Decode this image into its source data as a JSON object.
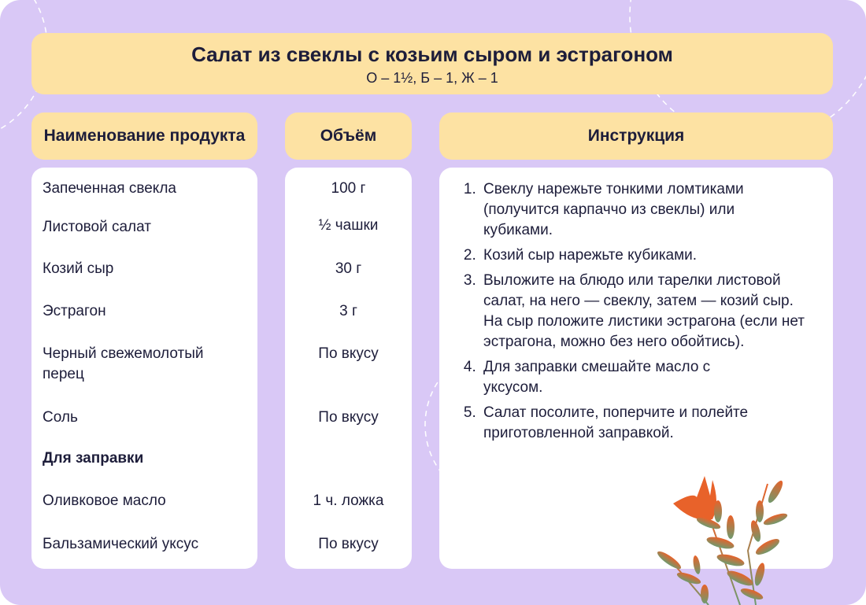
{
  "title": "Салат из свеклы с козьим сыром и эстрагоном",
  "subtitle": "О – 1½, Б – 1, Ж – 1",
  "headers": {
    "name": "Наименование продукта",
    "volume": "Объём",
    "instruction": "Инструкция"
  },
  "ingredients": [
    {
      "name": "Запеченная свекла",
      "volume": "100 г"
    },
    {
      "name": "Листовой салат",
      "volume": "½ чашки"
    },
    {
      "name": "Козий сыр",
      "volume": "30 г"
    },
    {
      "name": "Эстрагон",
      "volume": "3 г"
    },
    {
      "name": "Черный свежемолотый перец",
      "volume": "По вкусу"
    },
    {
      "name": "Соль",
      "volume": "По вкусу"
    },
    {
      "name": "Для заправки",
      "volume": ""
    },
    {
      "name": "Оливковое масло",
      "volume": "1 ч. ложка"
    },
    {
      "name": "Бальзамический уксус",
      "volume": "По вкусу"
    }
  ],
  "steps": [
    "Свеклу нарежьте тонкими ломтиками (получится карпаччо из свеклы) или кубиками.",
    "Козий сыр нарежьте кубиками.",
    "Выложите на блюдо или тарелки листовой салат, на него — свеклу, затем — козий сыр. На сыр положите листики эстрагона (если нет эстрагона, можно без него обойтись).",
    "Для заправки смешайте масло с уксусом.",
    "Салат посолите, поперчите и полейте приготовленной заправкой."
  ],
  "colors": {
    "background": "#d9c8f6",
    "header": "#fde2a3",
    "card": "#ffffff",
    "flower": "#e8622a",
    "leaf": "#7a9a6a"
  }
}
